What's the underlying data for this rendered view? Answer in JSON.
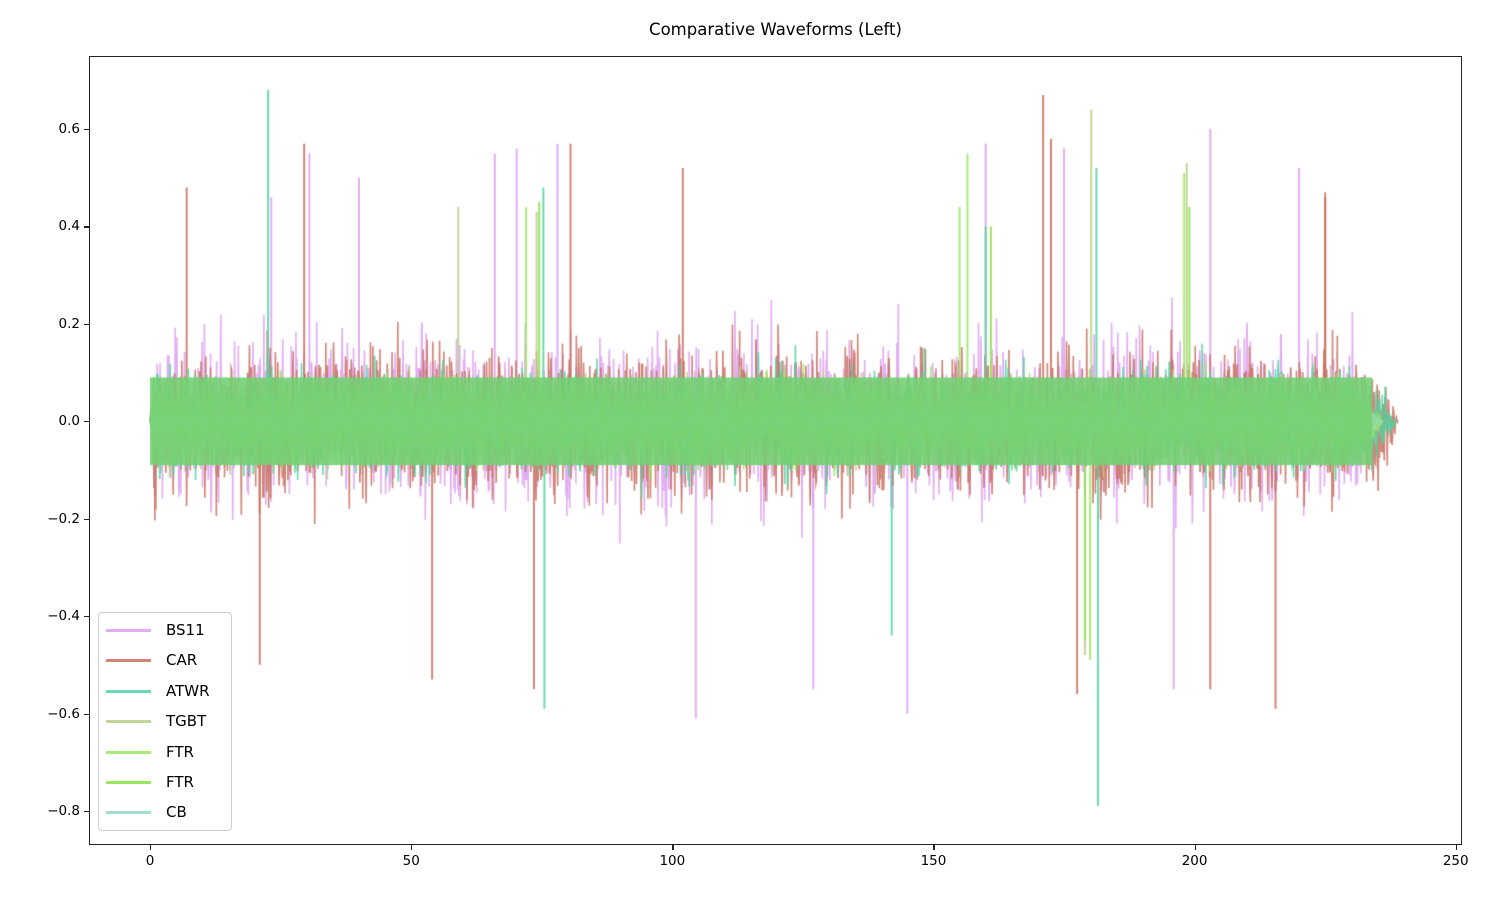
{
  "chart_data": {
    "type": "line",
    "title": "Comparative Waveforms (Left)",
    "xlabel": "",
    "ylabel": "",
    "xlim": [
      -11.7,
      251.2
    ],
    "ylim": [
      -0.87,
      0.75
    ],
    "grid": false,
    "legend_position": "lower left",
    "x_ticks": [
      0,
      50,
      100,
      150,
      200,
      250
    ],
    "x_tick_labels": [
      "0",
      "50",
      "100",
      "150",
      "200",
      "250"
    ],
    "y_ticks": [
      0.6,
      0.4,
      0.2,
      0.0,
      -0.2,
      -0.4,
      -0.6,
      -0.8
    ],
    "y_tick_labels": [
      "0.6",
      "0.4",
      "0.2",
      "0.0",
      "−0.2",
      "−0.4",
      "−0.6",
      "−0.8"
    ],
    "series": [
      {
        "name": "BS11",
        "color": "#dda0ee",
        "alpha": 0.85,
        "x_start": 0,
        "x_end": 235,
        "typical_amplitude": 0.32,
        "max": 0.61,
        "min": -0.61,
        "peaks": [
          [
            23.2,
            0.46
          ],
          [
            30.5,
            0.55
          ],
          [
            40,
            0.5
          ],
          [
            78,
            0.57
          ],
          [
            66,
            0.55
          ],
          [
            70.2,
            0.56
          ],
          [
            104.5,
            -0.61
          ],
          [
            127,
            -0.55
          ],
          [
            145,
            -0.6
          ],
          [
            160,
            0.57
          ],
          [
            175,
            0.56
          ],
          [
            203,
            0.6
          ],
          [
            220,
            0.52
          ],
          [
            196,
            -0.55
          ]
        ]
      },
      {
        "name": "CAR",
        "color": "#c87060",
        "alpha": 0.85,
        "x_start": 0,
        "x_end": 239,
        "typical_amplitude": 0.3,
        "max": 0.67,
        "min": -0.59,
        "peaks": [
          [
            7,
            0.48
          ],
          [
            29.5,
            0.57
          ],
          [
            80.5,
            0.57
          ],
          [
            21,
            -0.5
          ],
          [
            54,
            -0.53
          ],
          [
            73.5,
            -0.55
          ],
          [
            102,
            0.52
          ],
          [
            171,
            0.67
          ],
          [
            172.5,
            0.58
          ],
          [
            203,
            -0.55
          ],
          [
            215.5,
            -0.59
          ],
          [
            225,
            0.47
          ],
          [
            177.5,
            -0.56
          ],
          [
            225,
            0.46
          ]
        ]
      },
      {
        "name": "ATWR",
        "color": "#50d4a0",
        "alpha": 0.85,
        "x_start": 0,
        "x_end": 238.5,
        "typical_amplitude": 0.2,
        "max": 0.68,
        "min": -0.79,
        "peaks": [
          [
            22.6,
            0.68
          ],
          [
            75.3,
            0.48
          ],
          [
            75.5,
            -0.59
          ],
          [
            181.5,
            -0.79
          ],
          [
            181.2,
            0.52
          ],
          [
            160,
            0.4
          ],
          [
            142,
            -0.44
          ]
        ]
      },
      {
        "name": "TGBT",
        "color": "#b8cc88",
        "alpha": 0.85,
        "x_start": 0,
        "x_end": 236,
        "typical_amplitude": 0.17,
        "max": 0.64,
        "min": -0.48,
        "peaks": [
          [
            180.2,
            0.64
          ],
          [
            198.5,
            0.53
          ],
          [
            59,
            0.44
          ],
          [
            74,
            0.43
          ],
          [
            179,
            -0.48
          ]
        ]
      },
      {
        "name": "FTR",
        "color": "#9ae860",
        "alpha": 0.85,
        "x_start": 0,
        "x_end": 236,
        "typical_amplitude": 0.15,
        "max": 0.55,
        "min": -0.49,
        "peaks": [
          [
            156.5,
            0.55
          ],
          [
            198,
            0.51
          ],
          [
            155,
            0.44
          ],
          [
            180,
            -0.49
          ],
          [
            72,
            0.44
          ]
        ]
      },
      {
        "name": "FTR",
        "color": "#8ce048",
        "alpha": 0.85,
        "x_start": 0,
        "x_end": 236,
        "typical_amplitude": 0.13,
        "max": 0.45,
        "min": -0.45,
        "peaks": [
          [
            74.5,
            0.45
          ],
          [
            161,
            0.4
          ],
          [
            199,
            0.44
          ],
          [
            179,
            -0.45
          ]
        ]
      },
      {
        "name": "CB",
        "color": "#90dcc0",
        "alpha": 0.7,
        "x_start": 0,
        "x_end": 236,
        "typical_amplitude": 0.11,
        "max": 0.3,
        "min": -0.3,
        "peaks": []
      }
    ]
  }
}
